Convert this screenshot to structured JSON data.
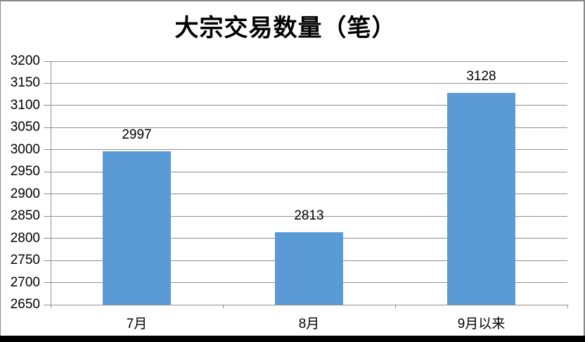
{
  "chart_data": {
    "type": "bar",
    "title": "大宗交易数量（笔）",
    "categories": [
      "7月",
      "8月",
      "9月以来"
    ],
    "values": [
      2997,
      2813,
      3128
    ],
    "data_labels_shown": true,
    "xlabel": "",
    "ylabel": "",
    "ylim": [
      2650,
      3200
    ],
    "y_ticks": [
      2650,
      2700,
      2750,
      2800,
      2850,
      2900,
      2950,
      3000,
      3050,
      3100,
      3150,
      3200
    ],
    "grid": true,
    "legend_position": "none",
    "colors": {
      "bar": "#5B9BD5",
      "gridline": "#8F8F8F",
      "axis": "#8F8F8F",
      "text": "#000000",
      "frame": "#8A8A8A",
      "bottom_border": "#000000",
      "background": "#FFFFFF"
    }
  }
}
